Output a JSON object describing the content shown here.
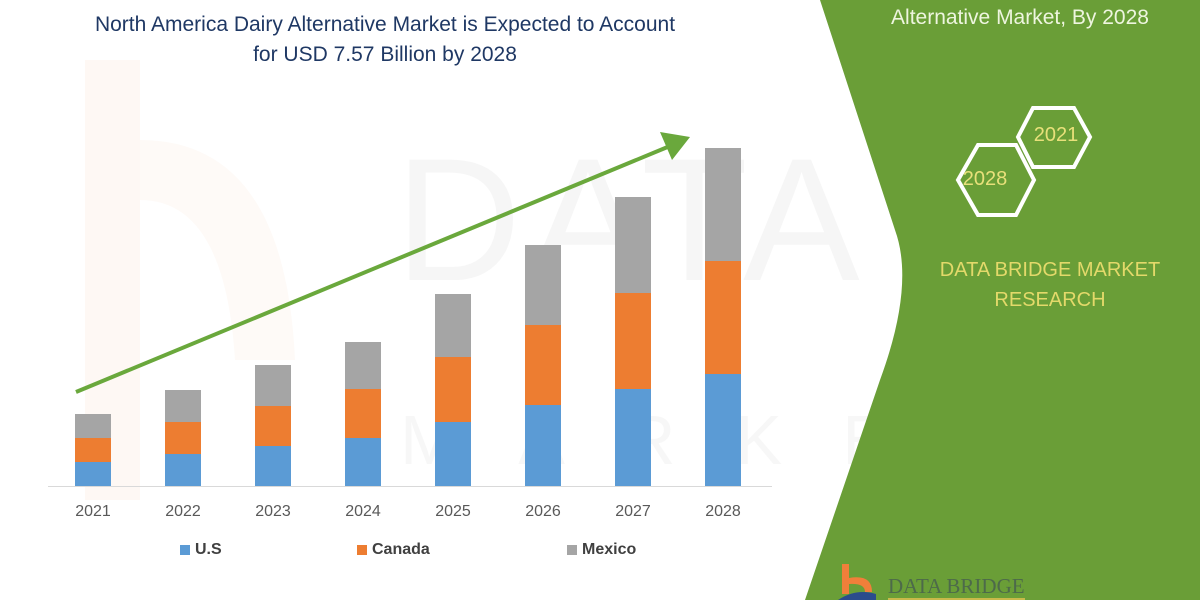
{
  "title": {
    "line1": "North America Dairy Alternative Market is Expected to Account",
    "line2": "for USD 7.57 Billion by 2028"
  },
  "panel": {
    "title": "Alternative Market, By 2028",
    "hex_left": "2028",
    "hex_right": "2021",
    "brand_line1": "DATA BRIDGE MARKET",
    "brand_line2": "RESEARCH",
    "logo_text": "DATA BRIDGE",
    "green": "#6a9e37"
  },
  "watermark": {
    "main": "DATA BRIDGE",
    "sub": "MARKET"
  },
  "legend": [
    {
      "name": "U.S",
      "color": "#5b9bd5"
    },
    {
      "name": "Canada",
      "color": "#ed7d31"
    },
    {
      "name": "Mexico",
      "color": "#a5a5a5"
    }
  ],
  "chart_data": {
    "type": "bar",
    "stacked": true,
    "title": "North America Dairy Alternative Market is Expected to Account for USD 7.57 Billion by 2028",
    "xlabel": "",
    "ylabel": "",
    "categories": [
      "2021",
      "2022",
      "2023",
      "2024",
      "2025",
      "2026",
      "2027",
      "2028"
    ],
    "series": [
      {
        "name": "U.S",
        "color": "#5b9bd5",
        "values": [
          0.54,
          0.72,
          0.9,
          1.08,
          1.43,
          1.81,
          2.17,
          2.51
        ]
      },
      {
        "name": "Canada",
        "color": "#ed7d31",
        "values": [
          0.54,
          0.72,
          0.9,
          1.1,
          1.46,
          1.79,
          2.15,
          2.53
        ]
      },
      {
        "name": "Mexico",
        "color": "#a5a5a5",
        "values": [
          0.54,
          0.72,
          0.9,
          1.05,
          1.41,
          1.79,
          2.15,
          2.53
        ]
      }
    ],
    "ylim": [
      0,
      7.57
    ],
    "grid": false,
    "y_axis_visible": false,
    "legend_position": "bottom",
    "annotations": [
      "Green upward trend arrow from 2021 to 2028"
    ]
  }
}
